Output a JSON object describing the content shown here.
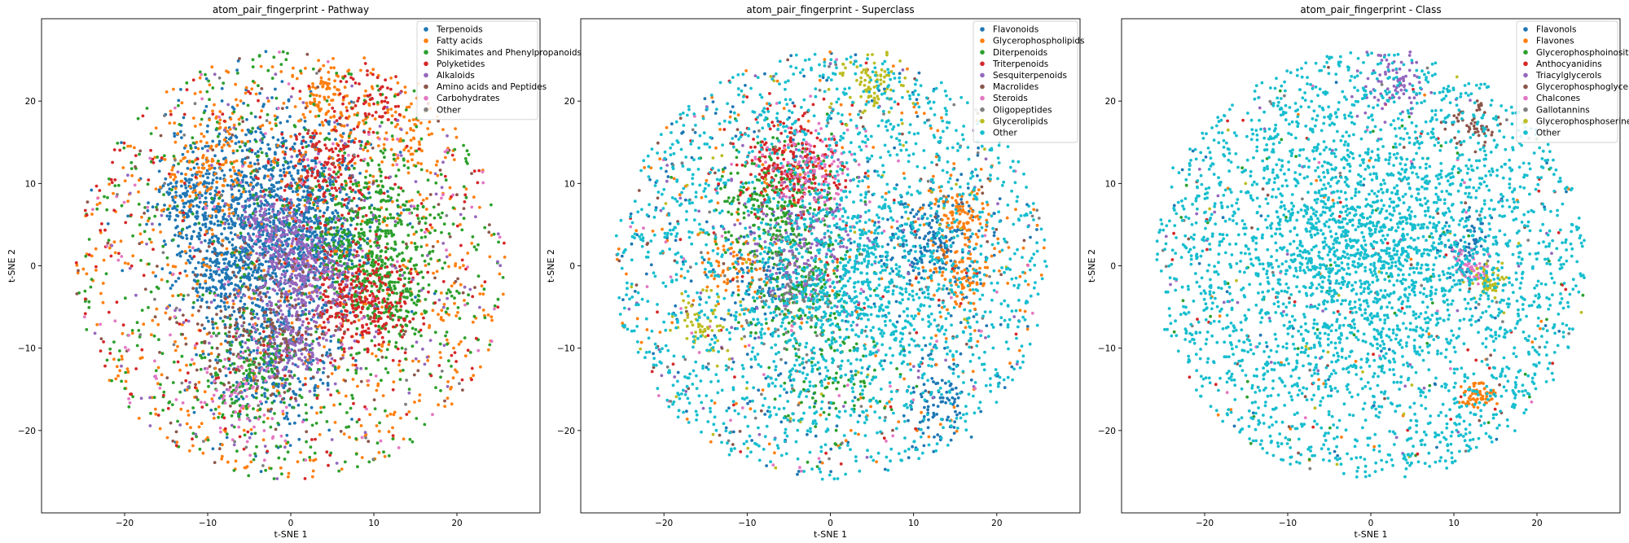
{
  "chart_data": [
    {
      "type": "scatter",
      "title": "atom_pair_fingerprint - Pathway",
      "xlabel": "t-SNE 1",
      "ylabel": "t-SNE 2",
      "xlim": [
        -30,
        30
      ],
      "ylim": [
        -30,
        30
      ],
      "xticks": [
        -20,
        -10,
        0,
        10,
        20
      ],
      "yticks": [
        -20,
        -10,
        0,
        10,
        20
      ],
      "tick_labels": {
        "x": [
          "−20",
          "−10",
          "0",
          "10",
          "20"
        ],
        "y": [
          "−20",
          "−10",
          "0",
          "10",
          "20"
        ]
      },
      "grid": false,
      "legend_position": "top-right",
      "series": [
        {
          "name": "Terpenoids",
          "color": "#1f77b4",
          "clusters": [
            [
              -3,
              7,
              6,
              1100
            ],
            [
              -7,
              -1,
              3,
              250
            ],
            [
              -2,
              -12,
              4,
              300
            ],
            [
              3,
              3,
              3,
              250
            ],
            [
              -12,
              8,
              2,
              120
            ]
          ]
        },
        {
          "name": "Fatty acids",
          "color": "#ff7f0e",
          "clusters": [
            [
              0,
              0,
              17,
              650
            ],
            [
              12,
              17,
              4,
              120
            ],
            [
              -10,
              12,
              3,
              120
            ],
            [
              4,
              20,
              2,
              80
            ]
          ]
        },
        {
          "name": "Shikimates and Phenylpropanoids",
          "color": "#2ca02c",
          "clusters": [
            [
              9,
              4,
              4,
              400
            ],
            [
              12,
              -4,
              3,
              200
            ],
            [
              0,
              0,
              17,
              550
            ],
            [
              -5,
              -13,
              3,
              150
            ]
          ]
        },
        {
          "name": "Polyketides",
          "color": "#d62728",
          "clusters": [
            [
              8,
              -4,
              3,
              300
            ],
            [
              4,
              12,
              3,
              150
            ],
            [
              0,
              0,
              17,
              220
            ],
            [
              10,
              20,
              2,
              60
            ]
          ]
        },
        {
          "name": "Alkaloids",
          "color": "#9467bd",
          "clusters": [
            [
              1,
              0,
              3,
              300
            ],
            [
              0,
              -9,
              3,
              200
            ],
            [
              0,
              0,
              17,
              150
            ],
            [
              -3,
              5,
              2,
              100
            ]
          ]
        },
        {
          "name": "Amino acids and Peptides",
          "color": "#8c564b",
          "clusters": [
            [
              -4,
              -8,
              4,
              160
            ],
            [
              0,
              0,
              17,
              120
            ]
          ]
        },
        {
          "name": "Carbohydrates",
          "color": "#e377c2",
          "clusters": [
            [
              0,
              0,
              17,
              120
            ],
            [
              -6,
              -16,
              3,
              60
            ]
          ]
        },
        {
          "name": "Other",
          "color": "#7f7f7f",
          "clusters": [
            [
              0,
              0,
              17,
              40
            ]
          ]
        }
      ]
    },
    {
      "type": "scatter",
      "title": "atom_pair_fingerprint - Superclass",
      "xlabel": "t-SNE 1",
      "ylabel": "t-SNE 2",
      "xlim": [
        -30,
        30
      ],
      "ylim": [
        -30,
        30
      ],
      "xticks": [
        -20,
        -10,
        0,
        10,
        20
      ],
      "yticks": [
        -20,
        -10,
        0,
        10,
        20
      ],
      "tick_labels": {
        "x": [
          "−20",
          "−10",
          "0",
          "10",
          "20"
        ],
        "y": [
          "−20",
          "−10",
          "0",
          "10",
          "20"
        ]
      },
      "grid": false,
      "legend_position": "top-right",
      "series": [
        {
          "name": "Flavonoids",
          "color": "#1f77b4",
          "clusters": [
            [
              12,
              3,
              3,
              200
            ],
            [
              0,
              0,
              17,
              260
            ],
            [
              13,
              -17,
              2,
              80
            ],
            [
              -8,
              -2,
              2,
              60
            ]
          ]
        },
        {
          "name": "Glycerophospholipids",
          "color": "#ff7f0e",
          "clusters": [
            [
              15,
              6,
              2,
              100
            ],
            [
              16,
              -2,
              2,
              80
            ],
            [
              0,
              0,
              17,
              200
            ],
            [
              -12,
              0,
              2,
              60
            ]
          ]
        },
        {
          "name": "Diterpenoids",
          "color": "#2ca02c",
          "clusters": [
            [
              -6,
              7,
              4,
              300
            ],
            [
              -3,
              -3,
              3,
              150
            ],
            [
              0,
              -14,
              4,
              100
            ]
          ]
        },
        {
          "name": "Triterpenoids",
          "color": "#d62728",
          "clusters": [
            [
              -5,
              12,
              3,
              250
            ],
            [
              0,
              0,
              17,
              60
            ]
          ]
        },
        {
          "name": "Sesquiterpenoids",
          "color": "#9467bd",
          "clusters": [
            [
              -3,
              3,
              4,
              200
            ],
            [
              0,
              0,
              17,
              60
            ]
          ]
        },
        {
          "name": "Macrolides",
          "color": "#8c564b",
          "clusters": [
            [
              0,
              0,
              17,
              70
            ]
          ]
        },
        {
          "name": "Steroids",
          "color": "#e377c2",
          "clusters": [
            [
              -2,
              12,
              3,
              120
            ],
            [
              0,
              0,
              17,
              60
            ]
          ]
        },
        {
          "name": "Oligopeptides",
          "color": "#7f7f7f",
          "clusters": [
            [
              -5,
              -4,
              3,
              80
            ],
            [
              0,
              0,
              17,
              70
            ]
          ]
        },
        {
          "name": "Glycerolipids",
          "color": "#bcbd22",
          "clusters": [
            [
              5,
              22,
              2,
              80
            ],
            [
              -15,
              -7,
              2,
              60
            ],
            [
              0,
              0,
              17,
              50
            ]
          ]
        },
        {
          "name": "Other",
          "color": "#17becf",
          "clusters": [
            [
              0,
              0,
              17,
              1500
            ],
            [
              3,
              -3,
              7,
              700
            ]
          ]
        }
      ]
    },
    {
      "type": "scatter",
      "title": "atom_pair_fingerprint - Class",
      "xlabel": "t-SNE 1",
      "ylabel": "t-SNE 2",
      "xlim": [
        -30,
        30
      ],
      "ylim": [
        -30,
        30
      ],
      "xticks": [
        -20,
        -10,
        0,
        10,
        20
      ],
      "yticks": [
        -20,
        -10,
        0,
        10,
        20
      ],
      "tick_labels": {
        "x": [
          "−20",
          "−10",
          "0",
          "10",
          "20"
        ],
        "y": [
          "−20",
          "−10",
          "0",
          "10",
          "20"
        ]
      },
      "grid": false,
      "legend_position": "top-right",
      "series": [
        {
          "name": "Flavonols",
          "color": "#1f77b4",
          "clusters": [
            [
              12,
              3,
              2,
              60
            ],
            [
              0,
              0,
              17,
              40
            ]
          ]
        },
        {
          "name": "Flavones",
          "color": "#ff7f0e",
          "clusters": [
            [
              13,
              -16,
              1,
              60
            ],
            [
              0,
              0,
              17,
              30
            ]
          ]
        },
        {
          "name": "Glycerophosphoinositols",
          "color": "#2ca02c",
          "clusters": [
            [
              0,
              0,
              17,
              60
            ]
          ]
        },
        {
          "name": "Anthocyanidins",
          "color": "#d62728",
          "clusters": [
            [
              0,
              0,
              17,
              50
            ]
          ]
        },
        {
          "name": "Triacylglycerols",
          "color": "#9467bd",
          "clusters": [
            [
              3,
              22,
              2,
              80
            ],
            [
              0,
              0,
              17,
              40
            ]
          ]
        },
        {
          "name": "Glycerophosphoglycerols",
          "color": "#8c564b",
          "clusters": [
            [
              12,
              17,
              1.5,
              50
            ],
            [
              0,
              0,
              17,
              30
            ]
          ]
        },
        {
          "name": "Chalcones",
          "color": "#e377c2",
          "clusters": [
            [
              12,
              0,
              1,
              60
            ],
            [
              0,
              0,
              17,
              20
            ]
          ]
        },
        {
          "name": "Gallotannins",
          "color": "#7f7f7f",
          "clusters": [
            [
              0,
              0,
              17,
              30
            ]
          ]
        },
        {
          "name": "Glycerophosphoserines",
          "color": "#bcbd22",
          "clusters": [
            [
              14,
              -2,
              1,
              60
            ],
            [
              0,
              0,
              17,
              20
            ]
          ]
        },
        {
          "name": "Other",
          "color": "#17becf",
          "clusters": [
            [
              0,
              0,
              17,
              2200
            ],
            [
              0,
              2,
              8,
              1200
            ]
          ]
        }
      ]
    }
  ]
}
